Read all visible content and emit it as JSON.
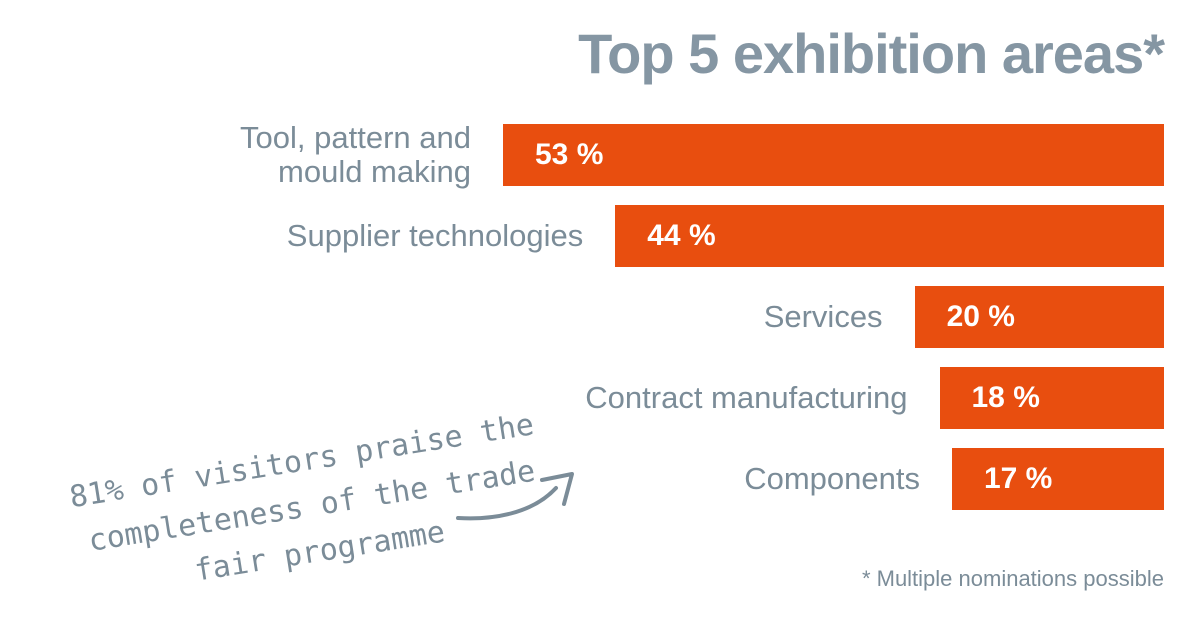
{
  "chart_data": {
    "type": "bar",
    "orientation": "horizontal",
    "title": "Top 5 exhibition areas*",
    "categories": [
      "Tool, pattern and\nmould making",
      "Supplier technologies",
      "Services",
      "Contract manufacturing",
      "Components"
    ],
    "values": [
      53,
      44,
      20,
      18,
      17
    ],
    "value_labels": [
      "53 %",
      "44 %",
      "20 %",
      "18 %",
      "17 %"
    ],
    "xlim": [
      0,
      100
    ],
    "grid": false,
    "bar_color": "#e84e0f",
    "footnote": "* Multiple nominations possible",
    "annotation": {
      "lines": [
        "81% of visitors praise the",
        "completeness of the trade",
        "fair programme"
      ]
    }
  },
  "colors": {
    "title": "#8596a3",
    "label": "#7b8c98",
    "accent": "#e84e0f"
  }
}
